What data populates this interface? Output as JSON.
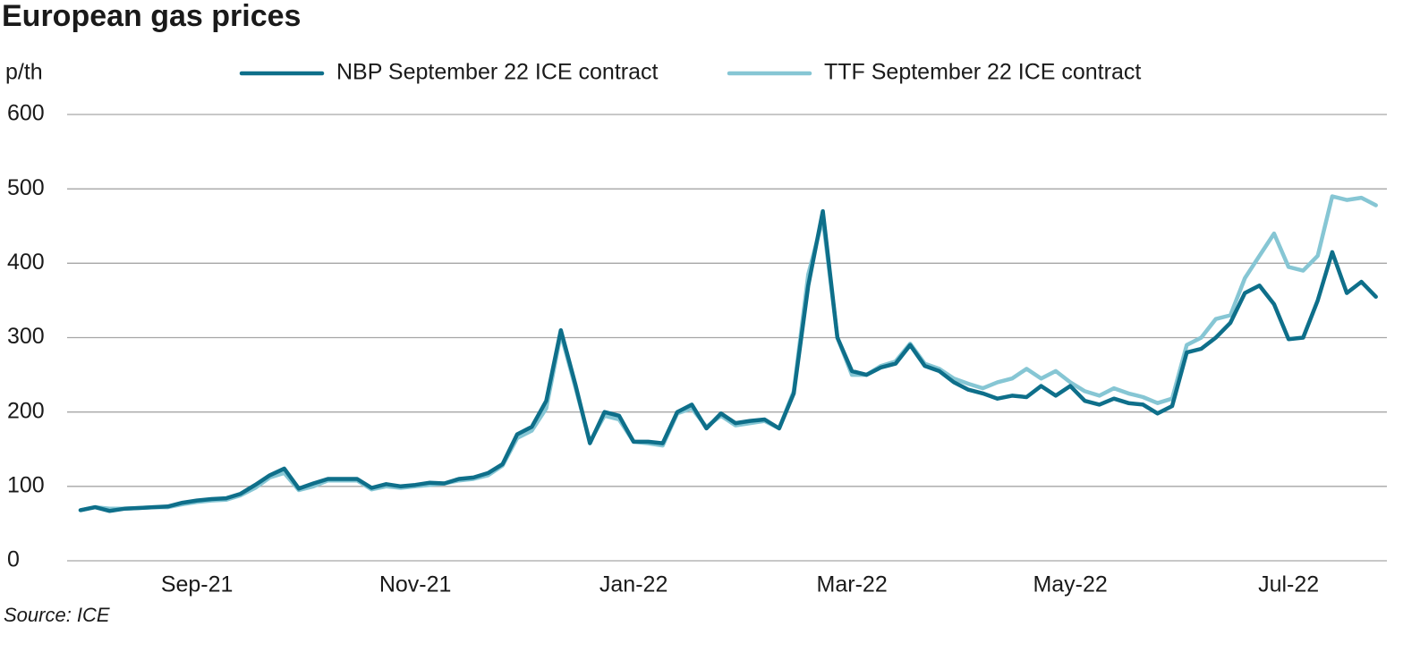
{
  "chart_data": {
    "type": "line",
    "title": "European gas prices",
    "y_label": "p/th",
    "source": "Source: ICE",
    "categories": [
      null,
      null,
      null,
      null,
      null,
      null,
      null,
      null,
      "Sep-21",
      null,
      null,
      null,
      null,
      null,
      null,
      null,
      null,
      null,
      null,
      null,
      null,
      null,
      null,
      "Nov-21",
      null,
      null,
      null,
      null,
      null,
      null,
      null,
      null,
      null,
      null,
      null,
      null,
      null,
      null,
      "Jan-22",
      null,
      null,
      null,
      null,
      null,
      null,
      null,
      null,
      null,
      null,
      null,
      null,
      null,
      null,
      "Mar-22",
      null,
      null,
      null,
      null,
      null,
      null,
      null,
      null,
      null,
      null,
      null,
      null,
      null,
      null,
      "May-22",
      null,
      null,
      null,
      null,
      null,
      null,
      null,
      null,
      null,
      null,
      null,
      null,
      null,
      null,
      "Jul-22",
      null,
      null,
      null,
      null,
      null,
      null
    ],
    "series": [
      {
        "name": "NBP September 22 ICE contract",
        "color": "#0e6f8a",
        "values": [
          68,
          72,
          67,
          70,
          71,
          72,
          73,
          78,
          81,
          83,
          84,
          90,
          102,
          115,
          124,
          97,
          104,
          110,
          110,
          110,
          98,
          103,
          100,
          102,
          105,
          104,
          110,
          112,
          118,
          130,
          170,
          180,
          215,
          310,
          237,
          158,
          200,
          195,
          160,
          160,
          158,
          200,
          210,
          178,
          198,
          185,
          188,
          190,
          178,
          225,
          370,
          470,
          300,
          255,
          250,
          260,
          265,
          290,
          262,
          255,
          240,
          230,
          225,
          218,
          222,
          220,
          235,
          222,
          235,
          215,
          210,
          218,
          212,
          210,
          198,
          208,
          280,
          285,
          300,
          320,
          360,
          370,
          345,
          298,
          300,
          350,
          415,
          360,
          375,
          355
        ]
      },
      {
        "name": "TTF September 22 ICE contract",
        "color": "#86c6d4",
        "values": [
          68,
          72,
          70,
          70,
          71,
          72,
          72,
          76,
          79,
          81,
          82,
          88,
          98,
          112,
          118,
          95,
          100,
          108,
          108,
          108,
          96,
          100,
          98,
          100,
          102,
          104,
          108,
          110,
          115,
          128,
          165,
          175,
          205,
          305,
          233,
          160,
          195,
          190,
          160,
          158,
          155,
          198,
          205,
          180,
          195,
          182,
          185,
          188,
          178,
          228,
          385,
          460,
          300,
          250,
          250,
          262,
          268,
          292,
          265,
          258,
          245,
          238,
          232,
          240,
          245,
          258,
          245,
          255,
          240,
          228,
          222,
          232,
          225,
          220,
          212,
          218,
          290,
          300,
          325,
          330,
          380,
          410,
          440,
          395,
          390,
          410,
          490,
          485,
          488,
          478
        ]
      }
    ],
    "ylim": [
      0,
      600
    ],
    "yticks": [
      0,
      100,
      200,
      300,
      400,
      500,
      600
    ],
    "grid": true
  }
}
